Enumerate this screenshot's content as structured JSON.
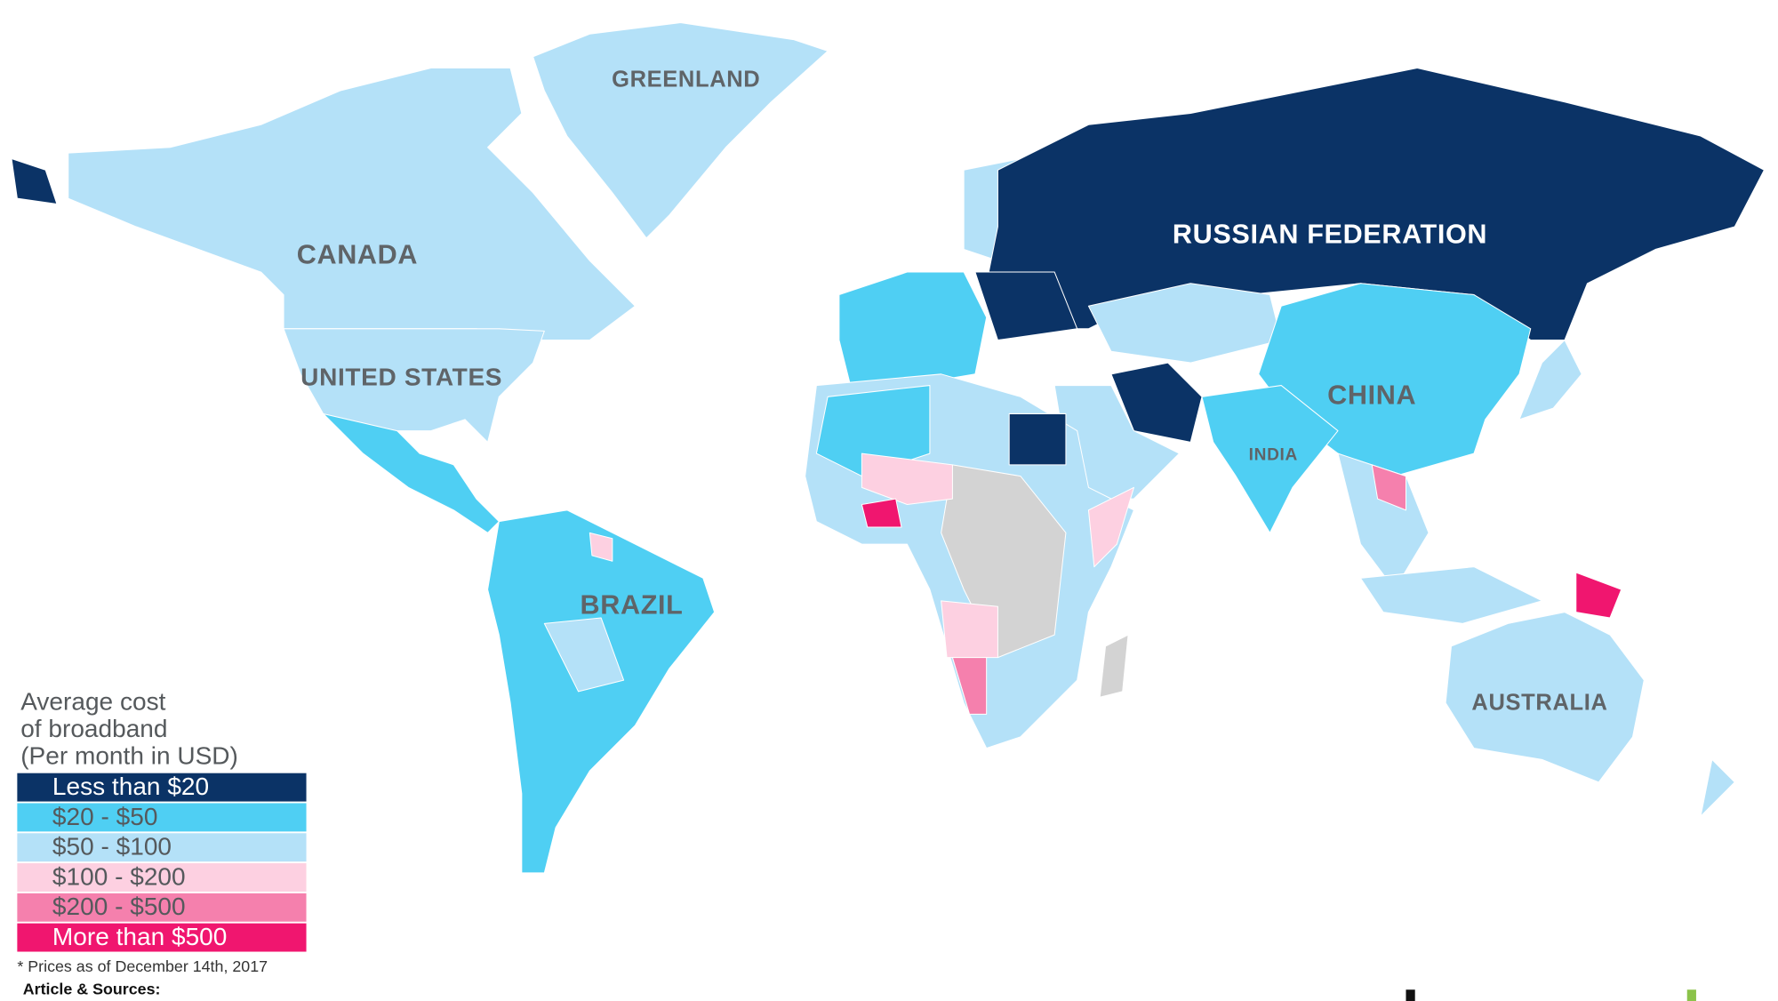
{
  "legend": {
    "title": [
      "Average cost",
      "of broadband",
      "(Per month in USD)"
    ],
    "items": [
      {
        "label": "Less than $20",
        "color": "#0b3366"
      },
      {
        "label": "$20 - $50",
        "color": "#4fcff3"
      },
      {
        "label": "$50 - $100",
        "color": "#b4e1f8"
      },
      {
        "label": "$100 - $200",
        "color": "#fdd0e1"
      },
      {
        "label": "$200 - $500",
        "color": "#f580ad"
      },
      {
        "label": "More than $500",
        "color": "#f0166f"
      }
    ]
  },
  "labels": [
    "GREENLAND",
    "CANADA",
    "UNITED STATES",
    "RUSSIAN FEDERATION",
    "CHINA",
    "INDIA",
    "BRAZIL",
    "AUSTRALIA"
  ],
  "footnote": "* Prices as of December 14th, 2017",
  "sources": "Article & Sources:"
}
